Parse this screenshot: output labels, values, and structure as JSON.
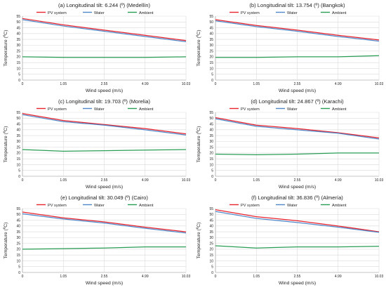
{
  "chart_data": [
    {
      "type": "line",
      "title": "(a) Longitudinal tilt: 6.244 (º) (Medellín)",
      "xlabel": "Wind speed (m/s)",
      "ylabel": "Temperature (ºC)",
      "categories": [
        "0",
        "1.05",
        "2.55",
        "4.99",
        "10.03"
      ],
      "ylim": [
        0,
        55
      ],
      "yticks": [
        0,
        5,
        10,
        15,
        20,
        25,
        30,
        35,
        40,
        45,
        50,
        55
      ],
      "grid": true,
      "legend": "top-center",
      "series": [
        {
          "name": "PV system",
          "color": "#e8232d",
          "values": [
            53,
            47.5,
            43,
            38.5,
            34
          ]
        },
        {
          "name": "Water",
          "color": "#4f87c9",
          "values": [
            52,
            46.5,
            42,
            37.5,
            33
          ]
        },
        {
          "name": "Ambient",
          "color": "#2a9d55",
          "values": [
            20,
            19.5,
            19.5,
            19.5,
            20
          ]
        }
      ]
    },
    {
      "type": "line",
      "title": "(b) Longitudinal tilt: 13.754 (º) (Bangkok)",
      "xlabel": "Wind speed (m/s)",
      "ylabel": "Temperature (ºC)",
      "categories": [
        "0",
        "1.05",
        "2.55",
        "4.99",
        "10.03"
      ],
      "ylim": [
        0,
        55
      ],
      "yticks": [
        0,
        5,
        10,
        15,
        20,
        25,
        30,
        35,
        40,
        45,
        50,
        55
      ],
      "grid": true,
      "legend": "top-center",
      "series": [
        {
          "name": "PV system",
          "color": "#e8232d",
          "values": [
            52,
            47,
            43,
            38.5,
            34.5
          ]
        },
        {
          "name": "Water",
          "color": "#4f87c9",
          "values": [
            51,
            46,
            42,
            37.5,
            33.5
          ]
        },
        {
          "name": "Ambient",
          "color": "#2a9d55",
          "values": [
            19.5,
            19.5,
            20,
            20,
            21
          ]
        }
      ]
    },
    {
      "type": "line",
      "title": "(c) Longitudinal tilt: 19.703 (º) (Morelia)",
      "xlabel": "Wind speed (m/s)",
      "ylabel": "Temperature (ºC)",
      "categories": [
        "0",
        "1.05",
        "2.55",
        "4.99",
        "10.03"
      ],
      "ylim": [
        0,
        55
      ],
      "yticks": [
        0,
        5,
        10,
        15,
        20,
        25,
        30,
        35,
        40,
        45,
        50,
        55
      ],
      "grid": true,
      "legend": "top-center",
      "series": [
        {
          "name": "PV system",
          "color": "#e8232d",
          "values": [
            54,
            48,
            44.5,
            41,
            36.5
          ]
        },
        {
          "name": "Water",
          "color": "#4f87c9",
          "values": [
            53,
            47,
            44,
            40,
            35.5
          ]
        },
        {
          "name": "Ambient",
          "color": "#2a9d55",
          "values": [
            23,
            21.5,
            22,
            22.5,
            23
          ]
        }
      ]
    },
    {
      "type": "line",
      "title": "(d) Longitudinal tilt: 24.867 (º) (Karachi)",
      "xlabel": "Wind speed (m/s)",
      "ylabel": "Temperature (ºC)",
      "categories": [
        "0",
        "1.05",
        "2.55",
        "4.99",
        "10.03"
      ],
      "ylim": [
        0,
        55
      ],
      "yticks": [
        0,
        5,
        10,
        15,
        20,
        25,
        30,
        35,
        40,
        45,
        50,
        55
      ],
      "grid": true,
      "legend": "top-center",
      "series": [
        {
          "name": "PV system",
          "color": "#e8232d",
          "values": [
            50.5,
            44,
            41,
            37.5,
            33
          ]
        },
        {
          "name": "Water",
          "color": "#4f87c9",
          "values": [
            49.5,
            43,
            40,
            37,
            32
          ]
        },
        {
          "name": "Ambient",
          "color": "#2a9d55",
          "values": [
            19,
            18.5,
            19,
            20,
            20
          ]
        }
      ]
    },
    {
      "type": "line",
      "title": "(e) Longitudinal tilt: 30.049 (º) (Cairo)",
      "xlabel": "Wind speed (m/s)",
      "ylabel": "Temperature (ºC)",
      "categories": [
        "0",
        "1.05",
        "2.55",
        "4.99",
        "10.03"
      ],
      "ylim": [
        0,
        55
      ],
      "yticks": [
        0,
        5,
        10,
        15,
        20,
        25,
        30,
        35,
        40,
        45,
        50,
        55
      ],
      "grid": true,
      "legend": "top-center",
      "series": [
        {
          "name": "PV system",
          "color": "#e8232d",
          "values": [
            52,
            47,
            43.5,
            39,
            35
          ]
        },
        {
          "name": "Water",
          "color": "#4f87c9",
          "values": [
            50.5,
            46,
            42.5,
            38,
            34
          ]
        },
        {
          "name": "Ambient",
          "color": "#2a9d55",
          "values": [
            20,
            20.5,
            21,
            22,
            22
          ]
        }
      ]
    },
    {
      "type": "line",
      "title": "(f) Longitudinal tilt: 36.836 (º) (Almería)",
      "xlabel": "Wind speed (m/s)",
      "ylabel": "Temperature (ºC)",
      "categories": [
        "0",
        "1.05",
        "2.55",
        "4.99",
        "10.03"
      ],
      "ylim": [
        0,
        55
      ],
      "yticks": [
        0,
        5,
        10,
        15,
        20,
        25,
        30,
        35,
        40,
        45,
        50,
        55
      ],
      "grid": true,
      "legend": "top-center",
      "series": [
        {
          "name": "PV system",
          "color": "#e8232d",
          "values": [
            54,
            48,
            44.5,
            40,
            35
          ]
        },
        {
          "name": "Water",
          "color": "#4f87c9",
          "values": [
            52.5,
            46.5,
            43,
            39,
            34.5
          ]
        },
        {
          "name": "Ambient",
          "color": "#2a9d55",
          "values": [
            23,
            21,
            22,
            22,
            22.5
          ]
        }
      ]
    }
  ]
}
